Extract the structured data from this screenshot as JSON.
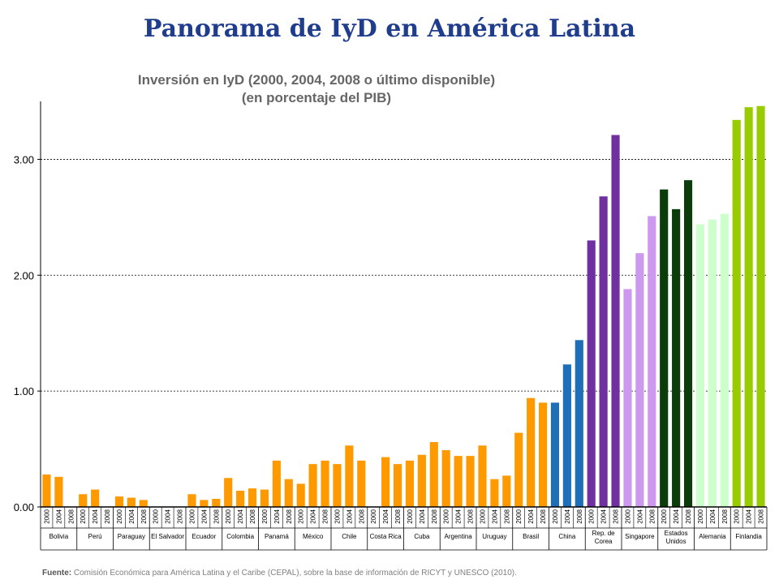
{
  "page": {
    "title": "Panorama de IyD en América Latina"
  },
  "source": {
    "label": "Fuente:",
    "text": "Comisión Económica para América Latina y el Caribe (CEPAL), sobre la base de información de RICYT y UNESCO (2010)."
  },
  "chart_data": {
    "type": "bar",
    "title": "Inversión en IyD (2000, 2004, 2008 o último disponible)",
    "subtitle": "(en porcentaje del PIB)",
    "xlabel": "",
    "ylabel": "",
    "ylim": [
      0,
      3.5
    ],
    "yticks": [
      0,
      1,
      2,
      3
    ],
    "ytick_labels": [
      "0.00",
      "1.00",
      "2.00",
      "3.00"
    ],
    "grid": "horizontal dotted",
    "years": [
      "2000",
      "2004",
      "2008"
    ],
    "countries": [
      {
        "name": "Bolivia",
        "lines": [
          "Bolivia"
        ],
        "values": [
          0.28,
          0.26,
          null
        ],
        "color": "#ff9900"
      },
      {
        "name": "Perú",
        "lines": [
          "Perú"
        ],
        "values": [
          0.11,
          0.15,
          null
        ],
        "color": "#ff9900"
      },
      {
        "name": "Paraguay",
        "lines": [
          "Paraguay"
        ],
        "values": [
          0.09,
          0.08,
          0.06
        ],
        "color": "#ff9900"
      },
      {
        "name": "El Salvador",
        "lines": [
          "El Salvador"
        ],
        "values": [
          null,
          null,
          null
        ],
        "color": "#ff9900"
      },
      {
        "name": "Ecuador",
        "lines": [
          "Ecuador"
        ],
        "values": [
          0.11,
          0.06,
          0.07
        ],
        "color": "#ff9900"
      },
      {
        "name": "Colombia",
        "lines": [
          "Colombia"
        ],
        "values": [
          0.25,
          0.14,
          0.16
        ],
        "color": "#ff9900"
      },
      {
        "name": "Panamá",
        "lines": [
          "Panamá"
        ],
        "values": [
          0.15,
          0.4,
          0.24
        ],
        "color": "#ff9900"
      },
      {
        "name": "México",
        "lines": [
          "México"
        ],
        "values": [
          0.2,
          0.37,
          0.4
        ],
        "color": "#ff9900"
      },
      {
        "name": "Chile",
        "lines": [
          "Chile"
        ],
        "values": [
          0.37,
          0.53,
          0.4
        ],
        "color": "#ff9900"
      },
      {
        "name": "Costa Rica",
        "lines": [
          "Costa Rica"
        ],
        "values": [
          null,
          0.43,
          0.37
        ],
        "color": "#ff9900"
      },
      {
        "name": "Cuba",
        "lines": [
          "Cuba"
        ],
        "values": [
          0.4,
          0.45,
          0.56
        ],
        "color": "#ff9900"
      },
      {
        "name": "Argentina",
        "lines": [
          "Argentina"
        ],
        "values": [
          0.49,
          0.44,
          0.44
        ],
        "color": "#ff9900"
      },
      {
        "name": "Uruguay",
        "lines": [
          "Uruguay"
        ],
        "values": [
          0.53,
          0.24,
          0.27
        ],
        "color": "#ff9900"
      },
      {
        "name": "Brasil",
        "lines": [
          "Brasil"
        ],
        "values": [
          0.64,
          0.94,
          0.9
        ],
        "color": "#ff9900"
      },
      {
        "name": "China",
        "lines": [
          "China"
        ],
        "values": [
          0.9,
          1.23,
          1.44
        ],
        "color": "#1f6fb8"
      },
      {
        "name": "Rep. de Corea",
        "lines": [
          "Rep. de",
          "Corea"
        ],
        "values": [
          2.3,
          2.68,
          3.21
        ],
        "color": "#7030a0"
      },
      {
        "name": "Singapore",
        "lines": [
          "Singapore"
        ],
        "values": [
          1.88,
          2.19,
          2.51
        ],
        "color": "#cc99ee"
      },
      {
        "name": "Estados Unidos",
        "lines": [
          "Estados",
          "Unidos"
        ],
        "values": [
          2.74,
          2.57,
          2.82
        ],
        "color": "#0b3d0b"
      },
      {
        "name": "Alemania",
        "lines": [
          "Alemania"
        ],
        "values": [
          2.44,
          2.48,
          2.53
        ],
        "color": "#ccffcc"
      },
      {
        "name": "Finlandia",
        "lines": [
          "Finlandia"
        ],
        "values": [
          3.34,
          3.45,
          3.46
        ],
        "color": "#99cc00"
      }
    ]
  }
}
